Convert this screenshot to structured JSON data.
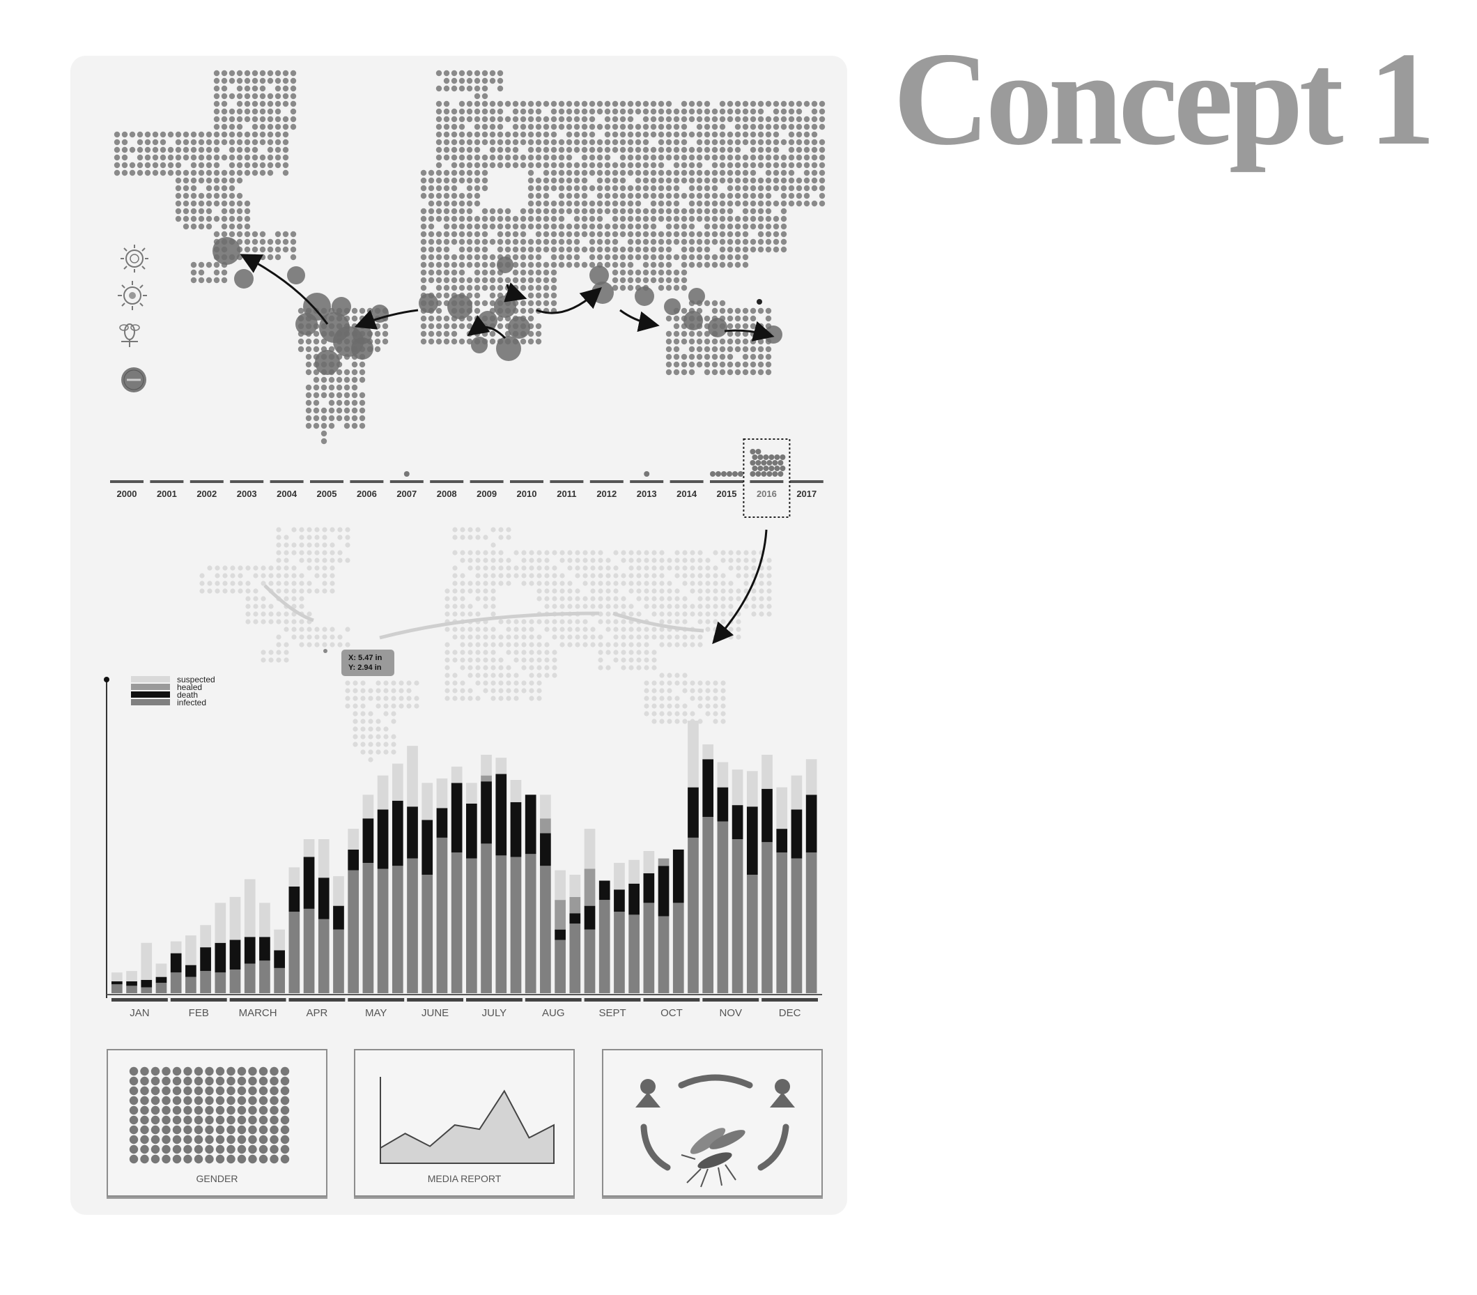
{
  "title": "Concept 1",
  "colors": {
    "panel_bg": "#f3f3f3",
    "dot": "#8a8a8a",
    "ghost": "#d6d6d6",
    "suspected": "#d9d9d9",
    "healed": "#9a9a9a",
    "death": "#111111",
    "infected": "#808080"
  },
  "legend_icons": [
    "virus-icon",
    "virus-icon",
    "mosquito-icon",
    "zika-badge-icon"
  ],
  "timeline": {
    "years": [
      "2000",
      "2001",
      "2002",
      "2003",
      "2004",
      "2005",
      "2006",
      "2007",
      "2008",
      "2009",
      "2010",
      "2011",
      "2012",
      "2013",
      "2014",
      "2015",
      "2016",
      "2017"
    ],
    "selected": "2016"
  },
  "tooltip": {
    "x_text": "X: 5.47 in",
    "y_text": "Y: 2.94 in"
  },
  "chart_data": {
    "type": "bar",
    "stacked": true,
    "series": [
      {
        "name": "infected",
        "values": [
          6,
          5,
          4,
          7,
          14,
          11,
          15,
          14,
          16,
          20,
          22,
          17,
          55,
          57,
          50,
          43,
          83,
          88,
          84,
          86,
          91,
          80,
          105,
          95,
          91,
          101,
          93,
          92,
          94,
          86,
          36,
          47,
          43,
          63,
          55,
          53,
          61,
          52,
          61,
          105,
          119,
          116,
          104,
          80,
          102,
          95,
          91,
          95
        ]
      },
      {
        "name": "death",
        "values": [
          2,
          3,
          5,
          4,
          13,
          8,
          16,
          20,
          20,
          18,
          16,
          12,
          17,
          35,
          28,
          16,
          14,
          30,
          40,
          44,
          35,
          37,
          20,
          47,
          37,
          42,
          55,
          37,
          40,
          22,
          7,
          7,
          16,
          13,
          15,
          21,
          20,
          34,
          36,
          34,
          39,
          23,
          23,
          46,
          36,
          16,
          33,
          39
        ]
      },
      {
        "name": "healed",
        "values": [
          0,
          0,
          0,
          0,
          0,
          0,
          0,
          0,
          0,
          0,
          0,
          0,
          0,
          0,
          0,
          0,
          0,
          0,
          0,
          0,
          0,
          0,
          0,
          0,
          0,
          4,
          0,
          0,
          0,
          10,
          20,
          11,
          25,
          0,
          0,
          0,
          0,
          5,
          0,
          0,
          0,
          0,
          0,
          0,
          0,
          0,
          0,
          0
        ]
      },
      {
        "name": "suspected",
        "values": [
          6,
          7,
          25,
          9,
          8,
          20,
          15,
          27,
          29,
          39,
          23,
          14,
          13,
          12,
          26,
          20,
          14,
          16,
          23,
          25,
          41,
          25,
          20,
          11,
          14,
          14,
          11,
          15,
          0,
          16,
          20,
          15,
          27,
          0,
          18,
          16,
          15,
          0,
          0,
          45,
          10,
          17,
          24,
          24,
          23,
          28,
          23,
          24
        ]
      }
    ],
    "legend": [
      "suspected",
      "healed",
      "death",
      "infected"
    ],
    "months": [
      "JAN",
      "FEB",
      "MARCH",
      "APR",
      "MAY",
      "JUNE",
      "JULY",
      "AUG",
      "SEPT",
      "OCT",
      "NOV",
      "DEC"
    ],
    "ylim": [
      0,
      200
    ]
  },
  "cards": [
    {
      "label": "GENDER",
      "icon": "gender-dot-grid"
    },
    {
      "label": "MEDIA REPORT",
      "icon": "area-chart-icon",
      "chart_data": {
        "type": "area",
        "values": [
          18,
          35,
          20,
          45,
          40,
          85,
          30,
          45
        ]
      }
    },
    {
      "label": "",
      "icon": "transmission-cycle-icon"
    }
  ]
}
